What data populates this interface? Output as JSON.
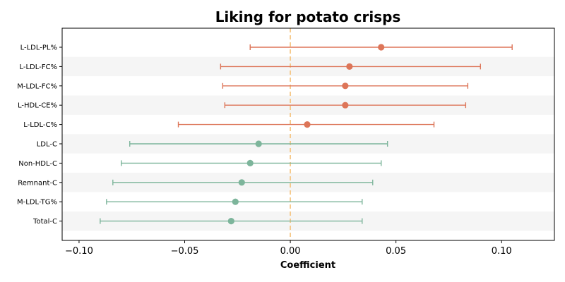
{
  "chart_data": {
    "type": "forest",
    "title": "Liking for potato crisps",
    "xlabel": "Coefficient",
    "ylabel": "",
    "xlim": [
      -0.108,
      0.125
    ],
    "xticks": [
      -0.1,
      -0.05,
      0.0,
      0.05,
      0.1
    ],
    "xtick_labels": [
      "−0.10",
      "−0.05",
      "0.00",
      "0.05",
      "0.10"
    ],
    "reference_line": {
      "x": 0.0,
      "color": "#f5c27a",
      "style": "dashed"
    },
    "row_shading": [
      "#ffffff",
      "#f5f5f5"
    ],
    "colors": {
      "positive": "#dd7558",
      "negative": "#7db59b"
    },
    "rows": [
      {
        "label": "L-LDL-PL%",
        "estimate": 0.043,
        "ci_low": -0.019,
        "ci_high": 0.105,
        "group": "positive"
      },
      {
        "label": "L-LDL-FC%",
        "estimate": 0.028,
        "ci_low": -0.033,
        "ci_high": 0.09,
        "group": "positive"
      },
      {
        "label": "M-LDL-FC%",
        "estimate": 0.026,
        "ci_low": -0.032,
        "ci_high": 0.084,
        "group": "positive"
      },
      {
        "label": "L-HDL-CE%",
        "estimate": 0.026,
        "ci_low": -0.031,
        "ci_high": 0.083,
        "group": "positive"
      },
      {
        "label": "L-LDL-C%",
        "estimate": 0.008,
        "ci_low": -0.053,
        "ci_high": 0.068,
        "group": "positive"
      },
      {
        "label": "LDL-C",
        "estimate": -0.015,
        "ci_low": -0.076,
        "ci_high": 0.046,
        "group": "negative"
      },
      {
        "label": "Non-HDL-C",
        "estimate": -0.019,
        "ci_low": -0.08,
        "ci_high": 0.043,
        "group": "negative"
      },
      {
        "label": "Remnant-C",
        "estimate": -0.023,
        "ci_low": -0.084,
        "ci_high": 0.039,
        "group": "negative"
      },
      {
        "label": "M-LDL-TG%",
        "estimate": -0.026,
        "ci_low": -0.087,
        "ci_high": 0.034,
        "group": "negative"
      },
      {
        "label": "Total-C",
        "estimate": -0.028,
        "ci_low": -0.09,
        "ci_high": 0.034,
        "group": "negative"
      }
    ]
  }
}
